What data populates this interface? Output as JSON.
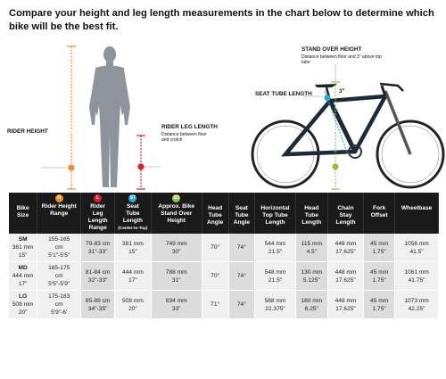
{
  "headline": "Compare your height and leg length measurements in the chart below to determine which bike will be the best fit.",
  "callouts": {
    "rider_height": "RIDER HEIGHT",
    "rider_leg_length": "RIDER LEG LENGTH",
    "rider_leg_length_sub": "Distance between floor and crotch",
    "stand_over_height": "STAND OVER HEIGHT",
    "stand_over_height_sub": "Distance between floor and 3\" above top tube",
    "seat_tube_length": "SEAT TUBE LENGTH",
    "three_inch": "3\"",
    "marker_h": "H",
    "marker_l": "L",
    "marker_st": "ST",
    "marker_so": "SO"
  },
  "colors": {
    "orange": "#f28c28",
    "red": "#d9222a",
    "blue": "#29a8e0",
    "green": "#8cc63f",
    "header_bg": "#1a1a1a"
  },
  "table": {
    "headers": {
      "bike_size": [
        "Bike",
        "Size"
      ],
      "rider_height": [
        "Rider Height",
        "Range"
      ],
      "rider_leg": [
        "Rider",
        "Leg",
        "Length",
        "Range"
      ],
      "seat_tube": [
        "Seat",
        "Tube",
        "Length"
      ],
      "seat_tube_note": "(Center-to-Top)",
      "standover": [
        "Approx. Bike",
        "Stand Over",
        "Height"
      ],
      "head_angle": [
        "Head",
        "Tube",
        "Angle"
      ],
      "seat_angle": [
        "Seat",
        "Tube",
        "Angle"
      ],
      "top_tube": [
        "Horizontal",
        "Top Tube",
        "Length"
      ],
      "head_tube": [
        "Head",
        "Tube",
        "Length"
      ],
      "chainstay": [
        "Chain",
        "Stay",
        "Length"
      ],
      "fork_offset": [
        "Fork",
        "Offset"
      ],
      "wheelbase": [
        "Wheelbase"
      ]
    },
    "rows": [
      {
        "size": "SM",
        "size_mm": "381 mm",
        "size_in": "15\"",
        "height_cm": "155-165",
        "height_unit": "cm",
        "height_ft": "5'1\"-5'5\"",
        "leg": "79-83 cm",
        "leg_in": "31\"-33\"",
        "seat_tube": "381 mm",
        "seat_tube_in": "15\"",
        "standover": "749 mm",
        "standover_in": "30\"",
        "head_angle": "70°",
        "seat_angle": "74°",
        "top_tube": "544 mm",
        "top_tube_in": "21.5\"",
        "head_tube": "115 mm",
        "head_tube_in": "4.5\"",
        "chainstay": "448 mm",
        "chainstay_in": "17.625\"",
        "fork": "45 mm",
        "fork_in": "1.75\"",
        "wheelbase": "1056 mm",
        "wheelbase_in": "41.5\""
      },
      {
        "size": "MD",
        "size_mm": "444 mm",
        "size_in": "17\"",
        "height_cm": "165-175",
        "height_unit": "cm",
        "height_ft": "5'5\"-5'9\"",
        "leg": "81-84 cm",
        "leg_in": "32\"-33\"",
        "seat_tube": "444 mm",
        "seat_tube_in": "17\"",
        "standover": "788 mm",
        "standover_in": "31\"",
        "head_angle": "70°",
        "seat_angle": "74°",
        "top_tube": "548 mm",
        "top_tube_in": "21.5\"",
        "head_tube": "130 mm",
        "head_tube_in": "5.125\"",
        "chainstay": "448 mm",
        "chainstay_in": "17.625\"",
        "fork": "45 mm",
        "fork_in": "1.75\"",
        "wheelbase": "1061 mm",
        "wheelbase_in": "41.75\""
      },
      {
        "size": "LG",
        "size_mm": "508 mm",
        "size_in": "20\"",
        "height_cm": "175-183",
        "height_unit": "cm",
        "height_ft": "5'9\"-6'",
        "leg": "85-89 cm",
        "leg_in": "34\"-35\"",
        "seat_tube": "508 mm",
        "seat_tube_in": "20\"",
        "standover": "834 mm",
        "standover_in": "33\"",
        "head_angle": "71°",
        "seat_angle": "74°",
        "top_tube": "568 mm",
        "top_tube_in": "22.375\"",
        "head_tube": "160 mm",
        "head_tube_in": "6.25\"",
        "chainstay": "448 mm",
        "chainstay_in": "17.625\"",
        "fork": "45 mm",
        "fork_in": "1.75\"",
        "wheelbase": "1073 mm",
        "wheelbase_in": "42.25\""
      }
    ]
  }
}
